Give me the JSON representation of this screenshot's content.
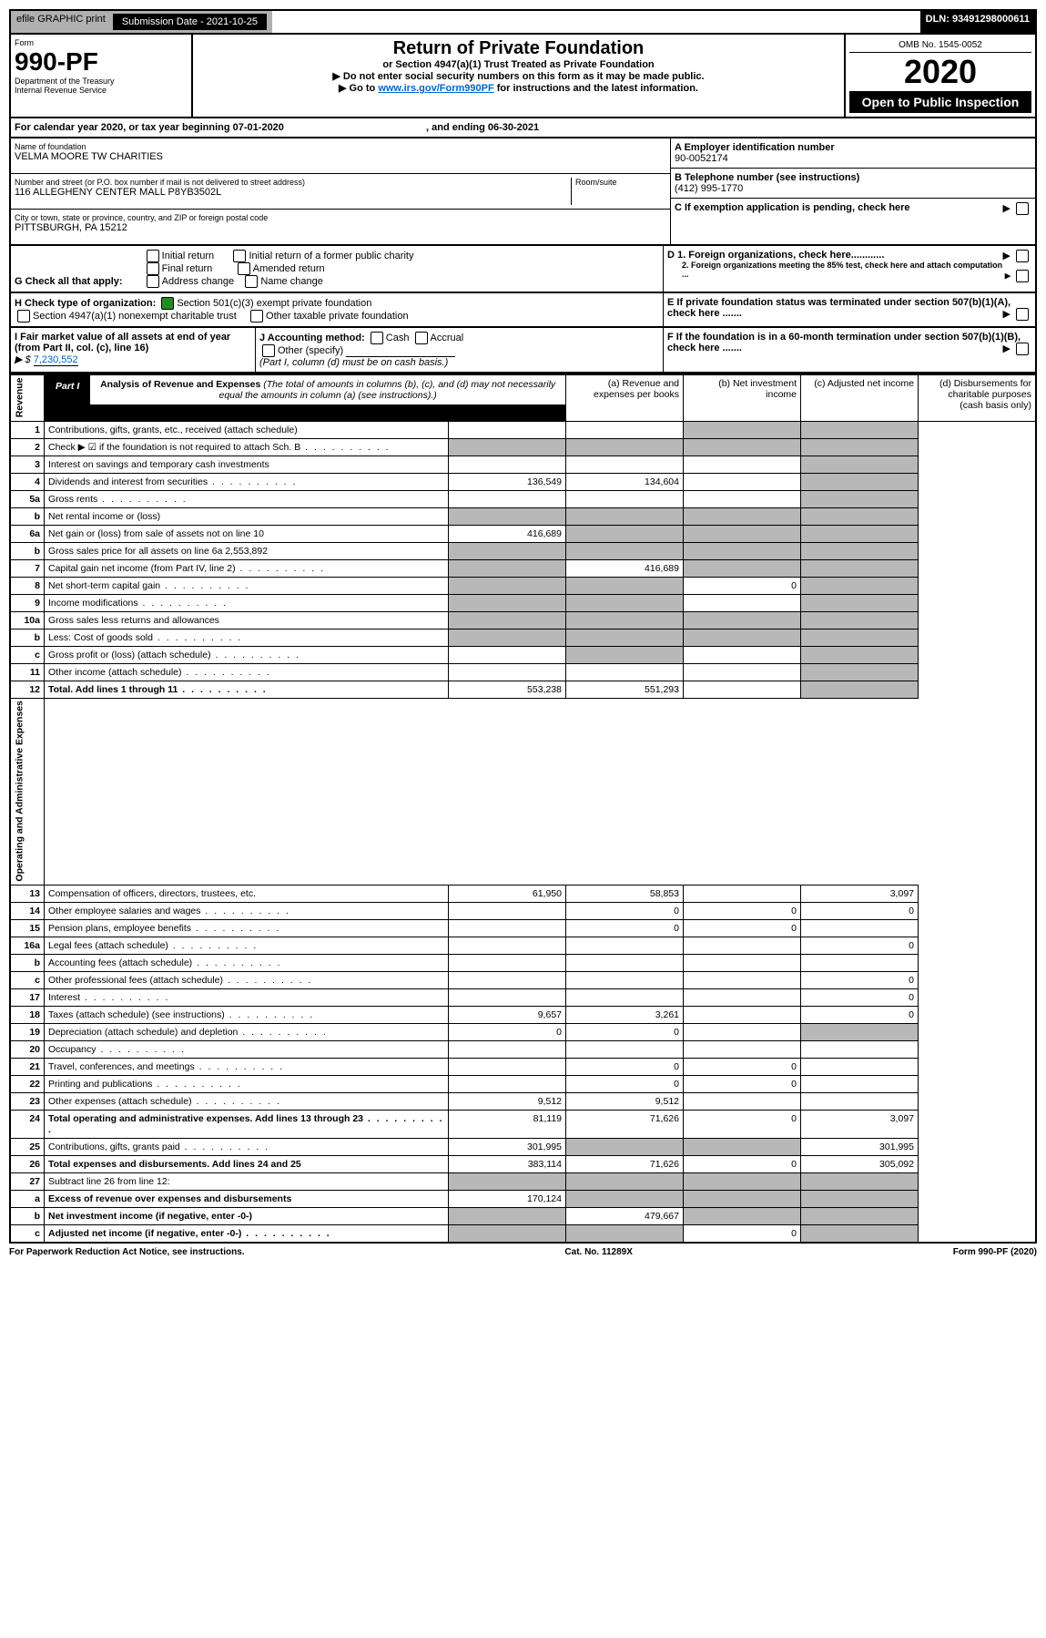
{
  "top": {
    "efile": "efile GRAPHIC print",
    "subDateLabel": "Submission Date - 2021-10-25",
    "dln": "DLN: 93491298000611"
  },
  "header": {
    "formWord": "Form",
    "formNumber": "990-PF",
    "dept": "Department of the Treasury",
    "irs": "Internal Revenue Service",
    "title": "Return of Private Foundation",
    "subtitle": "or Section 4947(a)(1) Trust Treated as Private Foundation",
    "note1": "▶ Do not enter social security numbers on this form as it may be made public.",
    "note2Prefix": "▶ Go to ",
    "note2Link": "www.irs.gov/Form990PF",
    "note2Suffix": " for instructions and the latest information.",
    "omb": "OMB No. 1545-0052",
    "year": "2020",
    "inspection": "Open to Public Inspection"
  },
  "calYear": {
    "text": "For calendar year 2020, or tax year beginning 07-01-2020",
    "ending": ", and ending 06-30-2021"
  },
  "info": {
    "nameLabel": "Name of foundation",
    "name": "VELMA MOORE TW CHARITIES",
    "addrLabel": "Number and street (or P.O. box number if mail is not delivered to street address)",
    "addr": "116 ALLEGHENY CENTER MALL P8YB3502L",
    "roomLabel": "Room/suite",
    "cityLabel": "City or town, state or province, country, and ZIP or foreign postal code",
    "city": "PITTSBURGH, PA  15212",
    "einLabel": "A Employer identification number",
    "ein": "90-0052174",
    "telLabel": "B Telephone number (see instructions)",
    "tel": "(412) 995-1770",
    "cLabel": "C If exemption application is pending, check here",
    "d1Label": "D 1. Foreign organizations, check here............",
    "d2Label": "2. Foreign organizations meeting the 85% test, check here and attach computation ...",
    "eLabel": "E If private foundation status was terminated under section 507(b)(1)(A), check here .......",
    "fLabel": "F If the foundation is in a 60-month termination under section 507(b)(1)(B), check here ......."
  },
  "g": {
    "label": "G Check all that apply:",
    "opts": [
      "Initial return",
      "Final return",
      "Address change",
      "Initial return of a former public charity",
      "Amended return",
      "Name change"
    ]
  },
  "h": {
    "label": "H Check type of organization:",
    "opt1": "Section 501(c)(3) exempt private foundation",
    "opt2": "Section 4947(a)(1) nonexempt charitable trust",
    "opt3": "Other taxable private foundation"
  },
  "i": {
    "label": "I Fair market value of all assets at end of year (from Part II, col. (c), line 16)",
    "valPrefix": "▶ $",
    "val": "7,230,552"
  },
  "j": {
    "label": "J Accounting method:",
    "cash": "Cash",
    "accrual": "Accrual",
    "other": "Other (specify)",
    "note": "(Part I, column (d) must be on cash basis.)"
  },
  "part1": {
    "label": "Part I",
    "title": "Analysis of Revenue and Expenses",
    "titleNote": " (The total of amounts in columns (b), (c), and (d) may not necessarily equal the amounts in column (a) (see instructions).)",
    "colA": "(a) Revenue and expenses per books",
    "colB": "(b) Net investment income",
    "colC": "(c) Adjusted net income",
    "colD": "(d) Disbursements for charitable purposes (cash basis only)"
  },
  "side": {
    "revenue": "Revenue",
    "expenses": "Operating and Administrative Expenses"
  },
  "rows": [
    {
      "n": "1",
      "label": "Contributions, gifts, grants, etc., received (attach schedule)",
      "a": "",
      "b": "",
      "c": "",
      "d": "",
      "grayC": true,
      "grayD": true
    },
    {
      "n": "2",
      "label": "Check ▶ ☑ if the foundation is not required to attach Sch. B",
      "a": "",
      "b": "",
      "c": "",
      "d": "",
      "grayA": true,
      "grayB": true,
      "grayC": true,
      "grayD": true,
      "dots": true
    },
    {
      "n": "3",
      "label": "Interest on savings and temporary cash investments",
      "a": "",
      "b": "",
      "c": "",
      "d": "",
      "grayD": true
    },
    {
      "n": "4",
      "label": "Dividends and interest from securities",
      "a": "136,549",
      "b": "134,604",
      "c": "",
      "d": "",
      "grayD": true,
      "dots": true
    },
    {
      "n": "5a",
      "label": "Gross rents",
      "a": "",
      "b": "",
      "c": "",
      "d": "",
      "grayD": true,
      "dots": true
    },
    {
      "n": "b",
      "label": "Net rental income or (loss)",
      "a": "",
      "b": "",
      "c": "",
      "d": "",
      "grayA": true,
      "grayB": true,
      "grayC": true,
      "grayD": true
    },
    {
      "n": "6a",
      "label": "Net gain or (loss) from sale of assets not on line 10",
      "a": "416,689",
      "b": "",
      "c": "",
      "d": "",
      "grayB": true,
      "grayC": true,
      "grayD": true
    },
    {
      "n": "b",
      "label": "Gross sales price for all assets on line 6a",
      "inline": "2,553,892",
      "a": "",
      "b": "",
      "c": "",
      "d": "",
      "grayA": true,
      "grayB": true,
      "grayC": true,
      "grayD": true
    },
    {
      "n": "7",
      "label": "Capital gain net income (from Part IV, line 2)",
      "a": "",
      "b": "416,689",
      "c": "",
      "d": "",
      "grayA": true,
      "grayC": true,
      "grayD": true,
      "dots": true
    },
    {
      "n": "8",
      "label": "Net short-term capital gain",
      "a": "",
      "b": "",
      "c": "0",
      "d": "",
      "grayA": true,
      "grayB": true,
      "grayD": true,
      "dots": true
    },
    {
      "n": "9",
      "label": "Income modifications",
      "a": "",
      "b": "",
      "c": "",
      "d": "",
      "grayA": true,
      "grayB": true,
      "grayD": true,
      "dots": true
    },
    {
      "n": "10a",
      "label": "Gross sales less returns and allowances",
      "a": "",
      "b": "",
      "c": "",
      "d": "",
      "grayA": true,
      "grayB": true,
      "grayC": true,
      "grayD": true
    },
    {
      "n": "b",
      "label": "Less: Cost of goods sold",
      "a": "",
      "b": "",
      "c": "",
      "d": "",
      "grayA": true,
      "grayB": true,
      "grayC": true,
      "grayD": true,
      "dots": true
    },
    {
      "n": "c",
      "label": "Gross profit or (loss) (attach schedule)",
      "a": "",
      "b": "",
      "c": "",
      "d": "",
      "grayB": true,
      "grayD": true,
      "dots": true
    },
    {
      "n": "11",
      "label": "Other income (attach schedule)",
      "a": "",
      "b": "",
      "c": "",
      "d": "",
      "grayD": true,
      "dots": true
    },
    {
      "n": "12",
      "label": "Total. Add lines 1 through 11",
      "a": "553,238",
      "b": "551,293",
      "c": "",
      "d": "",
      "grayD": true,
      "bold": true,
      "dots": true
    }
  ],
  "expRows": [
    {
      "n": "13",
      "label": "Compensation of officers, directors, trustees, etc.",
      "a": "61,950",
      "b": "58,853",
      "c": "",
      "d": "3,097"
    },
    {
      "n": "14",
      "label": "Other employee salaries and wages",
      "a": "",
      "b": "0",
      "c": "0",
      "d": "0",
      "dots": true
    },
    {
      "n": "15",
      "label": "Pension plans, employee benefits",
      "a": "",
      "b": "0",
      "c": "0",
      "d": "",
      "dots": true
    },
    {
      "n": "16a",
      "label": "Legal fees (attach schedule)",
      "a": "",
      "b": "",
      "c": "",
      "d": "0",
      "dots": true
    },
    {
      "n": "b",
      "label": "Accounting fees (attach schedule)",
      "a": "",
      "b": "",
      "c": "",
      "d": "",
      "dots": true
    },
    {
      "n": "c",
      "label": "Other professional fees (attach schedule)",
      "a": "",
      "b": "",
      "c": "",
      "d": "0",
      "dots": true
    },
    {
      "n": "17",
      "label": "Interest",
      "a": "",
      "b": "",
      "c": "",
      "d": "0",
      "dots": true
    },
    {
      "n": "18",
      "label": "Taxes (attach schedule) (see instructions)",
      "a": "9,657",
      "b": "3,261",
      "c": "",
      "d": "0",
      "dots": true
    },
    {
      "n": "19",
      "label": "Depreciation (attach schedule) and depletion",
      "a": "0",
      "b": "0",
      "c": "",
      "d": "",
      "grayD": true,
      "dots": true
    },
    {
      "n": "20",
      "label": "Occupancy",
      "a": "",
      "b": "",
      "c": "",
      "d": "",
      "dots": true
    },
    {
      "n": "21",
      "label": "Travel, conferences, and meetings",
      "a": "",
      "b": "0",
      "c": "0",
      "d": "",
      "dots": true
    },
    {
      "n": "22",
      "label": "Printing and publications",
      "a": "",
      "b": "0",
      "c": "0",
      "d": "",
      "dots": true
    },
    {
      "n": "23",
      "label": "Other expenses (attach schedule)",
      "a": "9,512",
      "b": "9,512",
      "c": "",
      "d": "",
      "dots": true
    },
    {
      "n": "24",
      "label": "Total operating and administrative expenses. Add lines 13 through 23",
      "a": "81,119",
      "b": "71,626",
      "c": "0",
      "d": "3,097",
      "bold": true,
      "dots": true
    },
    {
      "n": "25",
      "label": "Contributions, gifts, grants paid",
      "a": "301,995",
      "b": "",
      "c": "",
      "d": "301,995",
      "grayB": true,
      "grayC": true,
      "dots": true
    },
    {
      "n": "26",
      "label": "Total expenses and disbursements. Add lines 24 and 25",
      "a": "383,114",
      "b": "71,626",
      "c": "0",
      "d": "305,092",
      "bold": true
    },
    {
      "n": "27",
      "label": "Subtract line 26 from line 12:",
      "a": "",
      "b": "",
      "c": "",
      "d": "",
      "grayA": true,
      "grayB": true,
      "grayC": true,
      "grayD": true
    },
    {
      "n": "a",
      "label": "Excess of revenue over expenses and disbursements",
      "a": "170,124",
      "b": "",
      "c": "",
      "d": "",
      "grayB": true,
      "grayC": true,
      "grayD": true,
      "bold": true
    },
    {
      "n": "b",
      "label": "Net investment income (if negative, enter -0-)",
      "a": "",
      "b": "479,667",
      "c": "",
      "d": "",
      "grayA": true,
      "grayC": true,
      "grayD": true,
      "bold": true
    },
    {
      "n": "c",
      "label": "Adjusted net income (if negative, enter -0-)",
      "a": "",
      "b": "",
      "c": "0",
      "d": "",
      "grayA": true,
      "grayB": true,
      "grayD": true,
      "bold": true,
      "dots": true
    }
  ],
  "footer": {
    "left": "For Paperwork Reduction Act Notice, see instructions.",
    "center": "Cat. No. 11289X",
    "right": "Form 990-PF (2020)"
  }
}
